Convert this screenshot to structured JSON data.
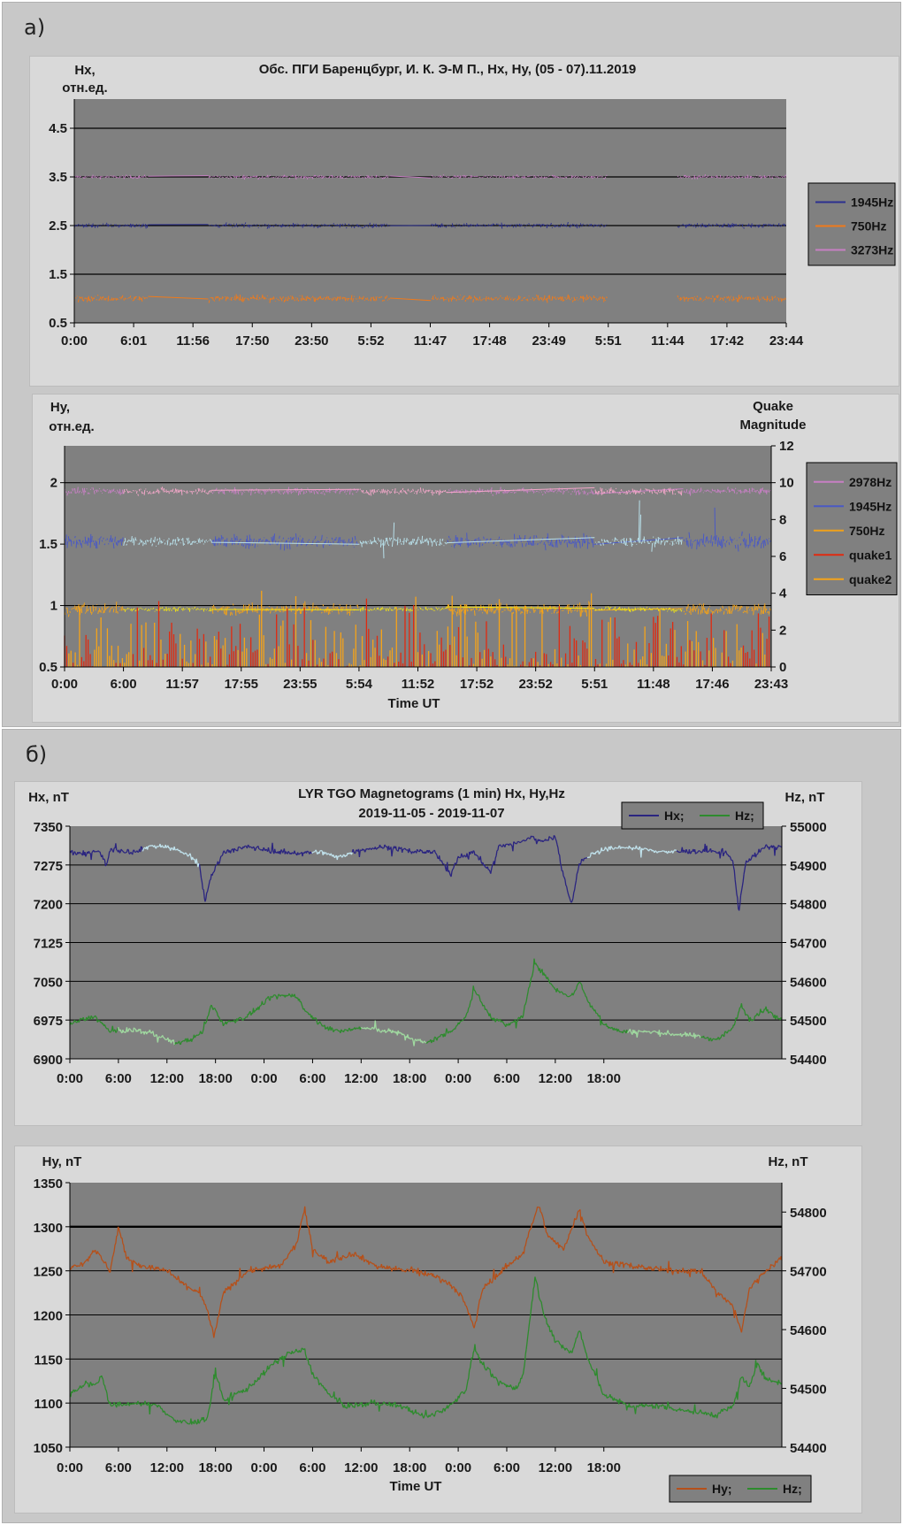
{
  "sections": [
    {
      "label": "а)"
    },
    {
      "label": "б)"
    }
  ],
  "colors": {
    "plot_bg": "#808080",
    "panel_bg": "#d9d9d9",
    "section_bg": "#c8c8c8"
  },
  "chart_data": [
    {
      "id": "c1",
      "type": "line",
      "title": "Обс. ПГИ Баренцбург, И. К. Э-М П., Hx, Hy,  (05 - 07).11.2019",
      "ylabel_left": [
        "Hx,",
        "отн.ед."
      ],
      "ylim": [
        0.5,
        5.1
      ],
      "yticks": [
        0.5,
        1.5,
        2.5,
        3.5,
        4.5
      ],
      "gridlines": [
        1.5,
        2.5,
        3.5,
        4.5
      ],
      "xtick_labels": [
        "0:00",
        "6:01",
        "11:56",
        "17:50",
        "23:50",
        "5:52",
        "11:47",
        "17:48",
        "23:49",
        "5:51",
        "11:44",
        "17:42",
        "23:44"
      ],
      "legend": {
        "position": "right",
        "entries": [
          {
            "name": "1945Hz",
            "color": "#2b2f8f"
          },
          {
            "name": "750Hz",
            "color": "#f07a1a"
          },
          {
            "name": "3273Hz",
            "color": "#c77fc4"
          }
        ]
      },
      "series": [
        {
          "name": "3273Hz",
          "color": "#c77fc4",
          "highlight_color": "#f2a6c8",
          "base": 3.5,
          "noise": 0.04,
          "active_noise": 0.07
        },
        {
          "name": "1945Hz",
          "color": "#2b2f8f",
          "highlight_color": "#6fb8e8",
          "base": 2.5,
          "noise": 0.05,
          "active_noise": 0.08
        },
        {
          "name": "750Hz",
          "color": "#f07a1a",
          "highlight_color": "#f2c40e",
          "base": 1.0,
          "noise": 0.07,
          "active_noise": 0.12
        }
      ],
      "highlight_intervals_hours": [
        [
          7.5,
          13.5
        ],
        [
          32.0,
          36.0
        ],
        [
          54.0,
          61.0
        ]
      ]
    },
    {
      "id": "c2",
      "type": "line",
      "ylabel_left": [
        "Hy,",
        "отн.ед."
      ],
      "ylabel_right": [
        "Quake",
        "Magnitude"
      ],
      "xlabel": "Time UT",
      "ylim": [
        0.5,
        2.3
      ],
      "yticks": [
        0.5,
        1,
        1.5,
        2
      ],
      "gridlines": [
        1,
        2
      ],
      "y2lim": [
        0,
        12
      ],
      "y2ticks": [
        0,
        2,
        4,
        6,
        8,
        10,
        12
      ],
      "xtick_labels": [
        "0:00",
        "6:00",
        "11:57",
        "17:55",
        "23:55",
        "5:54",
        "11:52",
        "17:52",
        "23:52",
        "5:51",
        "11:48",
        "17:46",
        "23:43"
      ],
      "legend": {
        "position": "right",
        "entries": [
          {
            "name": "2978Hz",
            "color": "#c77fc4"
          },
          {
            "name": "1945Hz",
            "color": "#4a59c4"
          },
          {
            "name": "750Hz",
            "color": "#f0a11a"
          },
          {
            "name": "quake1",
            "color": "#e02a10"
          },
          {
            "name": "quake2",
            "color": "#f5a31a"
          }
        ]
      },
      "series": [
        {
          "name": "2978Hz",
          "color": "#c77fc4",
          "highlight_color": "#f2a6c8",
          "base": 1.93,
          "noise": 0.03,
          "active_noise": 0.03
        },
        {
          "name": "1945Hz",
          "color": "#4a59c4",
          "highlight_color": "#b8e0ea",
          "base": 1.52,
          "noise": 0.06,
          "active_noise": 0.04
        },
        {
          "name": "750Hz",
          "color": "#f0a11a",
          "highlight_color": "#f5e60e",
          "base": 0.97,
          "noise": 0.05,
          "active_noise": 0.02
        }
      ],
      "highlight_intervals_hours": [
        [
          6.0,
          15.0
        ],
        [
          30.0,
          39.0
        ],
        [
          54.0,
          63.0
        ]
      ],
      "quake_magnitude_range": [
        0,
        4.5
      ]
    },
    {
      "id": "c3",
      "type": "line",
      "title": "LYR TGO Magnetograms (1 min) Hx, Hy,Hz",
      "subtitle": "2019-11-05 - 2019-11-07",
      "ylabel_left": "Hx, nT",
      "ylabel_right": "Hz, nT",
      "ylim": [
        6900,
        7350
      ],
      "yticks": [
        6900,
        6975,
        7050,
        7125,
        7200,
        7275,
        7350
      ],
      "y2lim": [
        54400,
        55000
      ],
      "y2ticks": [
        54400,
        54500,
        54600,
        54700,
        54800,
        54900,
        55000
      ],
      "xtick_labels": [
        "0:00",
        "6:00",
        "12:00",
        "18:00",
        "0:00",
        "6:00",
        "12:00",
        "18:00",
        "0:00",
        "6:00",
        "12:00",
        "18:00"
      ],
      "legend": {
        "position": "top-right",
        "entries": [
          {
            "name": "Hx;",
            "color": "#2b2580"
          },
          {
            "name": "Hz;",
            "color": "#2e8b2e"
          }
        ]
      },
      "series": [
        {
          "name": "Hx;",
          "color": "#2b2580",
          "axis": "left",
          "highlight_color": "#bfe0ea",
          "keypoints": [
            [
              0,
              7300
            ],
            [
              2,
              7295
            ],
            [
              3.5,
              7305
            ],
            [
              4.5,
              7275
            ],
            [
              5,
              7305
            ],
            [
              8,
              7300
            ],
            [
              10,
              7312
            ],
            [
              12,
              7310
            ],
            [
              14,
              7300
            ],
            [
              16,
              7275
            ],
            [
              16.7,
              7205
            ],
            [
              17.5,
              7255
            ],
            [
              19,
              7300
            ],
            [
              22,
              7310
            ],
            [
              26,
              7300
            ],
            [
              28,
              7298
            ],
            [
              31,
              7300
            ],
            [
              33,
              7290
            ],
            [
              36,
              7305
            ],
            [
              39,
              7310
            ],
            [
              42,
              7302
            ],
            [
              45,
              7300
            ],
            [
              46,
              7280
            ],
            [
              47,
              7255
            ],
            [
              48,
              7290
            ],
            [
              50,
              7300
            ],
            [
              52,
              7260
            ],
            [
              53,
              7310
            ],
            [
              56,
              7320
            ],
            [
              57,
              7330
            ],
            [
              58,
              7320
            ],
            [
              60,
              7330
            ],
            [
              61,
              7255
            ],
            [
              62,
              7200
            ],
            [
              63,
              7280
            ],
            [
              65,
              7300
            ],
            [
              68,
              7310
            ],
            [
              71,
              7305
            ],
            [
              74,
              7300
            ],
            [
              78,
              7302
            ],
            [
              81,
              7300
            ],
            [
              82,
              7280
            ],
            [
              82.7,
              7185
            ],
            [
              83.5,
              7280
            ],
            [
              86,
              7310
            ],
            [
              88,
              7310
            ]
          ],
          "highlight_intervals_hours": [
            [
              9,
              16
            ],
            [
              30,
              35
            ],
            [
              64,
              75
            ]
          ]
        },
        {
          "name": "Hz;",
          "color": "#2e8b2e",
          "axis": "right",
          "highlight_color": "#9fd89f",
          "keypoints": [
            [
              0,
              54490
            ],
            [
              3,
              54510
            ],
            [
              5,
              54470
            ],
            [
              8,
              54475
            ],
            [
              11,
              54460
            ],
            [
              13,
              54440
            ],
            [
              15,
              54450
            ],
            [
              16.5,
              54470
            ],
            [
              17.5,
              54540
            ],
            [
              19,
              54490
            ],
            [
              22,
              54510
            ],
            [
              25,
              54560
            ],
            [
              28,
              54565
            ],
            [
              29,
              54525
            ],
            [
              31,
              54490
            ],
            [
              33,
              54470
            ],
            [
              36,
              54480
            ],
            [
              40,
              54470
            ],
            [
              42,
              54455
            ],
            [
              44,
              54440
            ],
            [
              47,
              54470
            ],
            [
              49,
              54510
            ],
            [
              50,
              54580
            ],
            [
              51,
              54540
            ],
            [
              52,
              54510
            ],
            [
              54,
              54485
            ],
            [
              56,
              54510
            ],
            [
              57.5,
              54650
            ],
            [
              58.5,
              54620
            ],
            [
              60,
              54580
            ],
            [
              62,
              54560
            ],
            [
              63,
              54600
            ],
            [
              64,
              54550
            ],
            [
              66,
              54490
            ],
            [
              68,
              54470
            ],
            [
              71,
              54470
            ],
            [
              74,
              54465
            ],
            [
              77,
              54460
            ],
            [
              80,
              54450
            ],
            [
              82,
              54480
            ],
            [
              83,
              54540
            ],
            [
              84,
              54500
            ],
            [
              86,
              54530
            ],
            [
              87,
              54510
            ],
            [
              88,
              54500
            ]
          ],
          "highlight_intervals_hours": [
            [
              6,
              13
            ],
            [
              36,
              44
            ],
            [
              69,
              78
            ]
          ]
        }
      ]
    },
    {
      "id": "c4",
      "type": "line",
      "ylabel_left": "Hy, nT",
      "ylabel_right": "Hz, nT",
      "xlabel": "Time UT",
      "ylim": [
        1050,
        1350
      ],
      "yticks": [
        1050,
        1100,
        1150,
        1200,
        1250,
        1300,
        1350
      ],
      "gridlines": [
        1100,
        1150,
        1200,
        1250,
        1300
      ],
      "bold_gridline": 1300,
      "y2lim": [
        54400,
        54850
      ],
      "y2ticks": [
        54400,
        54500,
        54600,
        54700,
        54800
      ],
      "xtick_labels": [
        "0:00",
        "6:00",
        "12:00",
        "18:00",
        "0:00",
        "6:00",
        "12:00",
        "18:00",
        "0:00",
        "6:00",
        "12:00",
        "18:00"
      ],
      "legend": {
        "position": "bottom-right",
        "entries": [
          {
            "name": "Hy;",
            "color": "#b5501a"
          },
          {
            "name": "Hz;",
            "color": "#2e8b2e"
          }
        ]
      },
      "series": [
        {
          "name": "Hy;",
          "color": "#b5501a",
          "axis": "left",
          "highlight_color": "#e8c21a",
          "keypoints": [
            [
              0,
              1255
            ],
            [
              2,
              1260
            ],
            [
              3,
              1275
            ],
            [
              5,
              1250
            ],
            [
              6,
              1300
            ],
            [
              7,
              1265
            ],
            [
              9,
              1255
            ],
            [
              12,
              1250
            ],
            [
              14,
              1235
            ],
            [
              16,
              1225
            ],
            [
              17,
              1205
            ],
            [
              17.8,
              1175
            ],
            [
              19,
              1225
            ],
            [
              22,
              1250
            ],
            [
              26,
              1255
            ],
            [
              28,
              1280
            ],
            [
              29,
              1320
            ],
            [
              30,
              1275
            ],
            [
              32,
              1260
            ],
            [
              35,
              1270
            ],
            [
              38,
              1255
            ],
            [
              42,
              1250
            ],
            [
              45,
              1245
            ],
            [
              47,
              1235
            ],
            [
              48.5,
              1220
            ],
            [
              50,
              1185
            ],
            [
              51,
              1230
            ],
            [
              54,
              1255
            ],
            [
              56,
              1270
            ],
            [
              57,
              1300
            ],
            [
              58,
              1325
            ],
            [
              59,
              1290
            ],
            [
              61,
              1275
            ],
            [
              63,
              1320
            ],
            [
              64,
              1290
            ],
            [
              66,
              1260
            ],
            [
              70,
              1255
            ],
            [
              74,
              1250
            ],
            [
              78,
              1250
            ],
            [
              80,
              1225
            ],
            [
              82,
              1210
            ],
            [
              83,
              1180
            ],
            [
              84,
              1230
            ],
            [
              86,
              1250
            ],
            [
              88,
              1265
            ]
          ]
        },
        {
          "name": "Hz;",
          "color": "#2e8b2e",
          "axis": "right",
          "highlight_color": "#e6f5e6",
          "keypoints": [
            [
              0,
              54490
            ],
            [
              2,
              54510
            ],
            [
              3,
              54505
            ],
            [
              4,
              54520
            ],
            [
              5,
              54470
            ],
            [
              8,
              54475
            ],
            [
              11,
              54470
            ],
            [
              13,
              54445
            ],
            [
              15,
              54440
            ],
            [
              17,
              54450
            ],
            [
              18,
              54525
            ],
            [
              19,
              54480
            ],
            [
              22,
              54500
            ],
            [
              25,
              54540
            ],
            [
              27,
              54560
            ],
            [
              29,
              54565
            ],
            [
              30,
              54525
            ],
            [
              32,
              54490
            ],
            [
              34,
              54470
            ],
            [
              38,
              54475
            ],
            [
              41,
              54470
            ],
            [
              44,
              54450
            ],
            [
              47,
              54470
            ],
            [
              49,
              54500
            ],
            [
              50,
              54570
            ],
            [
              51,
              54540
            ],
            [
              53,
              54510
            ],
            [
              55,
              54500
            ],
            [
              56,
              54520
            ],
            [
              57.5,
              54690
            ],
            [
              58.5,
              54630
            ],
            [
              60,
              54580
            ],
            [
              62,
              54560
            ],
            [
              63,
              54600
            ],
            [
              64,
              54550
            ],
            [
              66,
              54490
            ],
            [
              69,
              54470
            ],
            [
              73,
              54470
            ],
            [
              77,
              54460
            ],
            [
              80,
              54455
            ],
            [
              82,
              54470
            ],
            [
              83,
              54520
            ],
            [
              84,
              54500
            ],
            [
              85,
              54545
            ],
            [
              86,
              54515
            ],
            [
              88,
              54510
            ]
          ]
        }
      ]
    }
  ]
}
